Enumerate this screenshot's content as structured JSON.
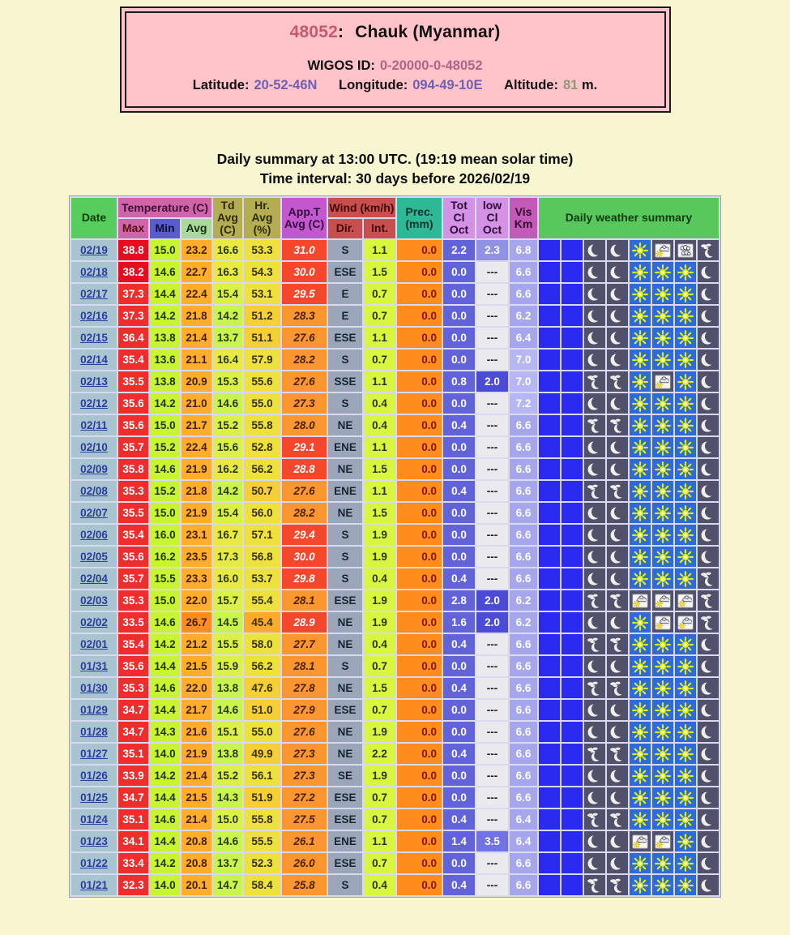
{
  "station": {
    "id": "48052",
    "id_colon": ":",
    "name": "Chauk (Myanmar)",
    "wigos_label": "WIGOS ID:",
    "wigos_id": "0-20000-0-48052",
    "latitude_label": "Latitude:",
    "latitude": "20-52-46N",
    "longitude_label": "Longitude:",
    "longitude": "094-49-10E",
    "altitude_label": "Altitude:",
    "altitude": "81",
    "altitude_unit": "m."
  },
  "titles": {
    "line1": "Daily summary at 13:00 UTC. (19:19 mean solar time)",
    "line2": "Time interval: 30 days before 2026/02/19"
  },
  "table": {
    "headers": {
      "date": "Date",
      "temperature": "Temperature (C)",
      "max": "Max",
      "min": "Min",
      "avg": "Avg",
      "td": "Td Avg (C)",
      "hr": "Hr. Avg (%)",
      "appt": "App.T Avg (C)",
      "wind": "Wind (km/h)",
      "dir": "Dir.",
      "int": "Int.",
      "prec": "Prec. (mm)",
      "tot_cl": "Tot Cl Oct",
      "low_cl": "low Cl Oct",
      "vis": "Vis Km",
      "daily": "Daily weather summary"
    },
    "rows": [
      {
        "date": "02/19",
        "max": "38.8",
        "min": "15.0",
        "avg": "23.2",
        "td": "16.6",
        "hr": "53.3",
        "appt": "31.0",
        "dir": "S",
        "int": "1.1",
        "prec": "0.0",
        "tot_cl": "2.2",
        "low_cl": "2.3",
        "vis": "6.8",
        "icons": [
          "moon",
          "moon",
          "sun",
          "cloud-sun",
          "clouds",
          "haze-moon"
        ]
      },
      {
        "date": "02/18",
        "max": "38.2",
        "min": "14.6",
        "avg": "22.7",
        "td": "16.3",
        "hr": "54.3",
        "appt": "30.0",
        "dir": "ESE",
        "int": "1.5",
        "prec": "0.0",
        "tot_cl": "0.0",
        "low_cl": "---",
        "vis": "6.6",
        "icons": [
          "moon",
          "moon",
          "sun",
          "sun",
          "sun",
          "moon"
        ]
      },
      {
        "date": "02/17",
        "max": "37.3",
        "min": "14.4",
        "avg": "22.4",
        "td": "15.4",
        "hr": "53.1",
        "appt": "29.5",
        "dir": "E",
        "int": "0.7",
        "prec": "0.0",
        "tot_cl": "0.0",
        "low_cl": "---",
        "vis": "6.6",
        "icons": [
          "moon",
          "moon",
          "sun",
          "sun",
          "sun",
          "moon"
        ]
      },
      {
        "date": "02/16",
        "max": "37.3",
        "min": "14.2",
        "avg": "21.8",
        "td": "14.2",
        "hr": "51.2",
        "appt": "28.3",
        "dir": "E",
        "int": "0.7",
        "prec": "0.0",
        "tot_cl": "0.0",
        "low_cl": "---",
        "vis": "6.2",
        "icons": [
          "moon",
          "moon",
          "sun",
          "sun",
          "sun",
          "moon"
        ]
      },
      {
        "date": "02/15",
        "max": "36.4",
        "min": "13.8",
        "avg": "21.4",
        "td": "13.7",
        "hr": "51.1",
        "appt": "27.6",
        "dir": "ESE",
        "int": "1.1",
        "prec": "0.0",
        "tot_cl": "0.0",
        "low_cl": "---",
        "vis": "6.4",
        "icons": [
          "moon",
          "moon",
          "sun",
          "sun",
          "sun",
          "moon"
        ]
      },
      {
        "date": "02/14",
        "max": "35.4",
        "min": "13.6",
        "avg": "21.1",
        "td": "16.4",
        "hr": "57.9",
        "appt": "28.2",
        "dir": "S",
        "int": "0.7",
        "prec": "0.0",
        "tot_cl": "0.0",
        "low_cl": "---",
        "vis": "7.0",
        "icons": [
          "moon",
          "moon",
          "sun",
          "sun",
          "sun",
          "moon"
        ]
      },
      {
        "date": "02/13",
        "max": "35.5",
        "min": "13.8",
        "avg": "20.9",
        "td": "15.3",
        "hr": "55.6",
        "appt": "27.6",
        "dir": "SSE",
        "int": "1.1",
        "prec": "0.0",
        "tot_cl": "0.8",
        "low_cl": "2.0",
        "vis": "7.0",
        "icons": [
          "haze-moon",
          "haze-moon",
          "sun",
          "cloud-sun",
          "sun",
          "moon"
        ]
      },
      {
        "date": "02/12",
        "max": "35.6",
        "min": "14.2",
        "avg": "21.0",
        "td": "14.6",
        "hr": "55.0",
        "appt": "27.3",
        "dir": "S",
        "int": "0.4",
        "prec": "0.0",
        "tot_cl": "0.0",
        "low_cl": "---",
        "vis": "7.2",
        "icons": [
          "moon",
          "moon",
          "sun",
          "sun",
          "sun",
          "moon"
        ]
      },
      {
        "date": "02/11",
        "max": "35.6",
        "min": "15.0",
        "avg": "21.7",
        "td": "15.2",
        "hr": "55.8",
        "appt": "28.0",
        "dir": "NE",
        "int": "0.4",
        "prec": "0.0",
        "tot_cl": "0.4",
        "low_cl": "---",
        "vis": "6.6",
        "icons": [
          "haze-moon",
          "haze-moon",
          "sun",
          "sun",
          "sun",
          "moon"
        ]
      },
      {
        "date": "02/10",
        "max": "35.7",
        "min": "15.2",
        "avg": "22.4",
        "td": "15.6",
        "hr": "52.8",
        "appt": "29.1",
        "dir": "ENE",
        "int": "1.1",
        "prec": "0.0",
        "tot_cl": "0.0",
        "low_cl": "---",
        "vis": "6.6",
        "icons": [
          "moon",
          "moon",
          "sun",
          "sun",
          "sun",
          "moon"
        ]
      },
      {
        "date": "02/09",
        "max": "35.8",
        "min": "14.6",
        "avg": "21.9",
        "td": "16.2",
        "hr": "56.2",
        "appt": "28.8",
        "dir": "NE",
        "int": "1.5",
        "prec": "0.0",
        "tot_cl": "0.0",
        "low_cl": "---",
        "vis": "6.6",
        "icons": [
          "moon",
          "moon",
          "sun",
          "sun",
          "sun",
          "moon"
        ]
      },
      {
        "date": "02/08",
        "max": "35.3",
        "min": "15.2",
        "avg": "21.8",
        "td": "14.2",
        "hr": "50.7",
        "appt": "27.6",
        "dir": "ENE",
        "int": "1.1",
        "prec": "0.0",
        "tot_cl": "0.4",
        "low_cl": "---",
        "vis": "6.6",
        "icons": [
          "haze-moon",
          "haze-moon",
          "sun",
          "sun",
          "sun",
          "moon"
        ]
      },
      {
        "date": "02/07",
        "max": "35.5",
        "min": "15.0",
        "avg": "21.9",
        "td": "15.4",
        "hr": "56.0",
        "appt": "28.2",
        "dir": "NE",
        "int": "1.5",
        "prec": "0.0",
        "tot_cl": "0.0",
        "low_cl": "---",
        "vis": "6.6",
        "icons": [
          "moon",
          "moon",
          "sun",
          "sun",
          "sun",
          "moon"
        ]
      },
      {
        "date": "02/06",
        "max": "35.4",
        "min": "16.0",
        "avg": "23.1",
        "td": "16.7",
        "hr": "57.1",
        "appt": "29.4",
        "dir": "S",
        "int": "1.9",
        "prec": "0.0",
        "tot_cl": "0.0",
        "low_cl": "---",
        "vis": "6.6",
        "icons": [
          "moon",
          "moon",
          "sun",
          "sun",
          "sun",
          "moon"
        ]
      },
      {
        "date": "02/05",
        "max": "35.6",
        "min": "16.2",
        "avg": "23.5",
        "td": "17.3",
        "hr": "56.8",
        "appt": "30.0",
        "dir": "S",
        "int": "1.9",
        "prec": "0.0",
        "tot_cl": "0.0",
        "low_cl": "---",
        "vis": "6.6",
        "icons": [
          "moon",
          "moon",
          "sun",
          "sun",
          "sun",
          "moon"
        ]
      },
      {
        "date": "02/04",
        "max": "35.7",
        "min": "15.5",
        "avg": "23.3",
        "td": "16.0",
        "hr": "53.7",
        "appt": "29.8",
        "dir": "S",
        "int": "0.4",
        "prec": "0.0",
        "tot_cl": "0.4",
        "low_cl": "---",
        "vis": "6.6",
        "icons": [
          "moon",
          "moon",
          "sun",
          "sun",
          "sun",
          "haze-moon"
        ]
      },
      {
        "date": "02/03",
        "max": "35.3",
        "min": "15.0",
        "avg": "22.0",
        "td": "15.7",
        "hr": "55.4",
        "appt": "28.1",
        "dir": "ESE",
        "int": "1.9",
        "prec": "0.0",
        "tot_cl": "2.8",
        "low_cl": "2.0",
        "vis": "6.2",
        "icons": [
          "haze-moon",
          "haze-moon",
          "cloud-sun",
          "cloud-sun",
          "cloud-sun",
          "haze-moon"
        ]
      },
      {
        "date": "02/02",
        "max": "33.5",
        "min": "14.6",
        "avg": "26.7",
        "td": "14.5",
        "hr": "45.4",
        "appt": "28.9",
        "dir": "NE",
        "int": "1.9",
        "prec": "0.0",
        "tot_cl": "1.6",
        "low_cl": "2.0",
        "vis": "6.2",
        "icons": [
          "moon",
          "moon",
          "sun",
          "cloud-sun",
          "cloud-sun",
          "haze-moon"
        ]
      },
      {
        "date": "02/01",
        "max": "35.4",
        "min": "14.2",
        "avg": "21.2",
        "td": "15.5",
        "hr": "58.0",
        "appt": "27.7",
        "dir": "NE",
        "int": "0.4",
        "prec": "0.0",
        "tot_cl": "0.4",
        "low_cl": "---",
        "vis": "6.6",
        "icons": [
          "haze-moon",
          "haze-moon",
          "sun",
          "sun",
          "sun",
          "moon"
        ]
      },
      {
        "date": "01/31",
        "max": "35.6",
        "min": "14.4",
        "avg": "21.5",
        "td": "15.9",
        "hr": "56.2",
        "appt": "28.1",
        "dir": "S",
        "int": "0.7",
        "prec": "0.0",
        "tot_cl": "0.0",
        "low_cl": "---",
        "vis": "6.6",
        "icons": [
          "moon",
          "moon",
          "sun",
          "sun",
          "sun",
          "moon"
        ]
      },
      {
        "date": "01/30",
        "max": "35.3",
        "min": "14.6",
        "avg": "22.0",
        "td": "13.8",
        "hr": "47.6",
        "appt": "27.8",
        "dir": "NE",
        "int": "1.5",
        "prec": "0.0",
        "tot_cl": "0.4",
        "low_cl": "---",
        "vis": "6.6",
        "icons": [
          "haze-moon",
          "haze-moon",
          "sun",
          "sun",
          "sun",
          "moon"
        ]
      },
      {
        "date": "01/29",
        "max": "34.7",
        "min": "14.4",
        "avg": "21.7",
        "td": "14.6",
        "hr": "51.0",
        "appt": "27.9",
        "dir": "ESE",
        "int": "0.7",
        "prec": "0.0",
        "tot_cl": "0.0",
        "low_cl": "---",
        "vis": "6.6",
        "icons": [
          "moon",
          "moon",
          "sun",
          "sun",
          "sun",
          "moon"
        ]
      },
      {
        "date": "01/28",
        "max": "34.7",
        "min": "14.3",
        "avg": "21.6",
        "td": "15.1",
        "hr": "55.0",
        "appt": "27.6",
        "dir": "NE",
        "int": "1.9",
        "prec": "0.0",
        "tot_cl": "0.0",
        "low_cl": "---",
        "vis": "6.6",
        "icons": [
          "moon",
          "moon",
          "sun",
          "sun",
          "sun",
          "moon"
        ]
      },
      {
        "date": "01/27",
        "max": "35.1",
        "min": "14.0",
        "avg": "21.9",
        "td": "13.8",
        "hr": "49.9",
        "appt": "27.3",
        "dir": "NE",
        "int": "2.2",
        "prec": "0.0",
        "tot_cl": "0.4",
        "low_cl": "---",
        "vis": "6.6",
        "icons": [
          "haze-moon",
          "haze-moon",
          "sun",
          "sun",
          "sun",
          "moon"
        ]
      },
      {
        "date": "01/26",
        "max": "33.9",
        "min": "14.2",
        "avg": "21.4",
        "td": "15.2",
        "hr": "56.1",
        "appt": "27.3",
        "dir": "SE",
        "int": "1.9",
        "prec": "0.0",
        "tot_cl": "0.0",
        "low_cl": "---",
        "vis": "6.6",
        "icons": [
          "moon",
          "moon",
          "sun",
          "sun",
          "sun",
          "moon"
        ]
      },
      {
        "date": "01/25",
        "max": "34.7",
        "min": "14.4",
        "avg": "21.5",
        "td": "14.3",
        "hr": "51.9",
        "appt": "27.2",
        "dir": "ESE",
        "int": "0.7",
        "prec": "0.0",
        "tot_cl": "0.0",
        "low_cl": "---",
        "vis": "6.6",
        "icons": [
          "moon",
          "moon",
          "sun",
          "sun",
          "sun",
          "moon"
        ]
      },
      {
        "date": "01/24",
        "max": "35.1",
        "min": "14.6",
        "avg": "21.4",
        "td": "15.0",
        "hr": "55.8",
        "appt": "27.5",
        "dir": "ESE",
        "int": "0.7",
        "prec": "0.0",
        "tot_cl": "0.4",
        "low_cl": "---",
        "vis": "6.4",
        "icons": [
          "haze-moon",
          "haze-moon",
          "sun",
          "sun",
          "sun",
          "moon"
        ]
      },
      {
        "date": "01/23",
        "max": "34.1",
        "min": "14.4",
        "avg": "20.8",
        "td": "14.6",
        "hr": "55.5",
        "appt": "26.1",
        "dir": "ENE",
        "int": "1.1",
        "prec": "0.0",
        "tot_cl": "1.4",
        "low_cl": "3.5",
        "vis": "6.4",
        "icons": [
          "moon",
          "moon",
          "cloud-sun",
          "cloud-sun",
          "sun",
          "moon"
        ]
      },
      {
        "date": "01/22",
        "max": "33.4",
        "min": "14.2",
        "avg": "20.8",
        "td": "13.7",
        "hr": "52.3",
        "appt": "26.0",
        "dir": "ESE",
        "int": "0.7",
        "prec": "0.0",
        "tot_cl": "0.0",
        "low_cl": "---",
        "vis": "6.6",
        "icons": [
          "moon",
          "moon",
          "sun",
          "sun",
          "sun",
          "moon"
        ]
      },
      {
        "date": "01/21",
        "max": "32.3",
        "min": "14.0",
        "avg": "20.1",
        "td": "14.7",
        "hr": "58.4",
        "appt": "25.8",
        "dir": "S",
        "int": "0.4",
        "prec": "0.0",
        "tot_cl": "0.4",
        "low_cl": "---",
        "vis": "6.6",
        "icons": [
          "haze-moon",
          "haze-moon",
          "sun",
          "sun",
          "sun",
          "moon"
        ]
      }
    ]
  },
  "colors": {
    "page_bg": "#f7f6d0",
    "card_bg": "#ffc3c9",
    "station_id": "#c25a70",
    "wigos_value": "#b06488",
    "coord_value": "#6e60b2",
    "altitude_value": "#8e9a78",
    "cells": {
      "date_bg": "#a9c3cf",
      "date_link": "#2b3e9e",
      "max_bg_hot": "#e60d1e",
      "max_bg": "#ef2d2d",
      "min_bg": "#c9f431",
      "avg_bg": "#ffad2b",
      "avg_bg_hot": "#ff8c1f",
      "td_hi": "#e9e944",
      "td_mid": "#dcf148",
      "td_lo": "#c9f44d",
      "hr_hi": "#efe13d",
      "hr_mid": "#f6cf37",
      "hr_lo": "#ffab2a",
      "appt_hot_bg": "#f5472b",
      "appt_bg": "#fa9630",
      "dir_bg": "#9ba6bb",
      "int_bg": "#d8f63f",
      "prec_bg": "#ff8c1c",
      "prec_text": "#7c1400",
      "tot_bg": "#6263d8",
      "low_dash_bg": "#e9e9ee",
      "low_20": "#4b4bd6",
      "low_23": "#9192e6",
      "low_35": "#7173e0",
      "vis_bg": "#a5a6ec",
      "vis_hi_bg": "#b6b7f2",
      "filler_bg": "#2a2af0",
      "icon_dark_bg": "#51516b",
      "icon_sun_bg": "#2e6bd8"
    }
  }
}
